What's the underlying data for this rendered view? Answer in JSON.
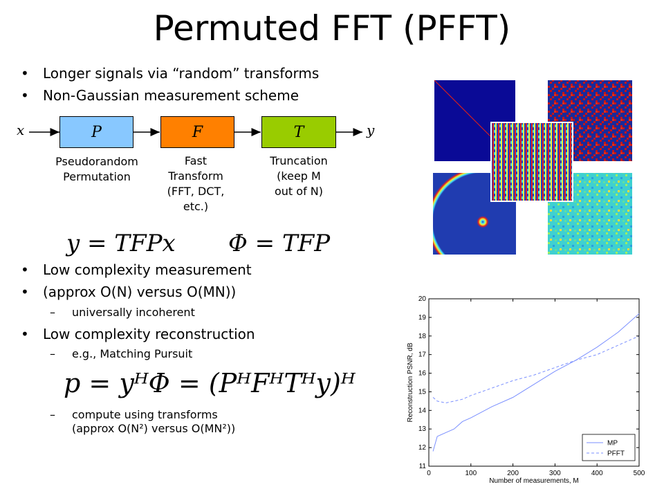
{
  "title": "Permuted FFT (PFFT)",
  "bullets_top": [
    "Longer signals via “random” transforms",
    "Non-Gaussian measurement scheme"
  ],
  "diagram": {
    "input_label": "x",
    "output_label": "y",
    "blocks": [
      {
        "symbol": "P",
        "caption": [
          "Pseudorandom",
          "Permutation"
        ],
        "color": "#88c8ff"
      },
      {
        "symbol": "F",
        "caption": [
          "Fast",
          "Transform",
          "(FFT, DCT,",
          "etc.)"
        ],
        "color": "#ff8000"
      },
      {
        "symbol": "T",
        "caption": [
          "Truncation",
          "(keep M",
          "out of N)"
        ],
        "color": "#99cc00"
      }
    ]
  },
  "eq1_left": "y = TFPx",
  "eq1_right": "Φ = TFP",
  "bullets_mid": [
    "Low complexity measurement",
    "(approx O(N) versus O(MN))"
  ],
  "sub1": "universally incoherent",
  "bullet_recon": "Low complexity reconstruction",
  "sub2": "e.g., Matching Pursuit",
  "eq2": "p = yᴴΦ = (PᴴFᴴTᴴy)ᴴ",
  "sub3_line1": "compute using transforms",
  "sub3_line2": "(approx O(N²) versus O(MN²))",
  "chart_data": {
    "type": "line",
    "xlabel": "Number of measurements, M",
    "ylabel": "Reconstruction PSNR, dB",
    "xlim": [
      0,
      500
    ],
    "ylim": [
      11,
      20
    ],
    "xticks": [
      0,
      100,
      200,
      300,
      400,
      500
    ],
    "yticks": [
      11,
      12,
      13,
      14,
      15,
      16,
      17,
      18,
      19,
      20
    ],
    "legend_position": "bottom-right",
    "series": [
      {
        "name": "MP",
        "style": "solid",
        "color": "#7a8fff",
        "x": [
          10,
          20,
          40,
          60,
          80,
          100,
          150,
          200,
          250,
          300,
          350,
          400,
          450,
          500
        ],
        "y": [
          11.8,
          12.6,
          12.8,
          13.0,
          13.4,
          13.6,
          14.2,
          14.7,
          15.4,
          16.1,
          16.7,
          17.4,
          18.2,
          19.2
        ]
      },
      {
        "name": "PFFT",
        "style": "dashed",
        "color": "#7a8fff",
        "x": [
          10,
          20,
          40,
          60,
          80,
          100,
          150,
          200,
          250,
          300,
          350,
          400,
          450,
          500
        ],
        "y": [
          14.7,
          14.5,
          14.4,
          14.5,
          14.6,
          14.8,
          15.2,
          15.6,
          15.9,
          16.3,
          16.7,
          17.0,
          17.5,
          18.0
        ]
      }
    ]
  }
}
